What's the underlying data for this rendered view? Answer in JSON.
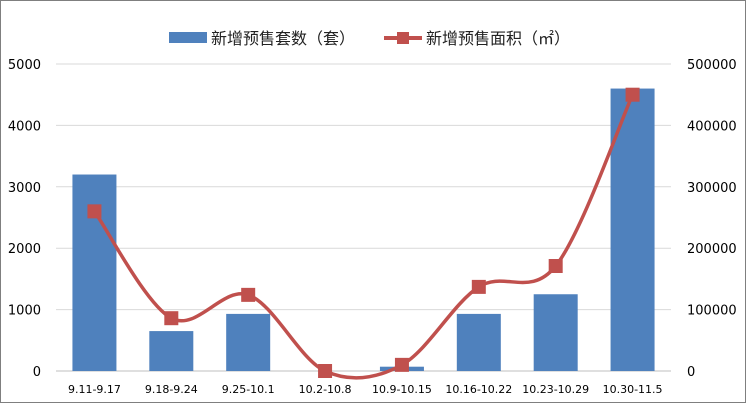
{
  "chart_data": {
    "type": "bar-line-combo",
    "categories": [
      "9.11-9.17",
      "9.18-9.24",
      "9.25-10.1",
      "10.2-10.8",
      "10.9-10.15",
      "10.16-10.22",
      "10.23-10.29",
      "10.30-11.5"
    ],
    "series": [
      {
        "name": "新增预售套数（套）",
        "type": "bar",
        "axis": "left",
        "color": "#4f81bd",
        "values": [
          3200,
          650,
          930,
          0,
          70,
          930,
          1250,
          4600
        ]
      },
      {
        "name": "新增预售面积（㎡）",
        "type": "line",
        "axis": "right",
        "color": "#c0504d",
        "values": [
          260000,
          86000,
          124000,
          0,
          10000,
          137000,
          171000,
          450000
        ]
      }
    ],
    "y_left": {
      "min": 0,
      "max": 5000,
      "ticks": [
        "0",
        "1000",
        "2000",
        "3000",
        "4000",
        "5000"
      ]
    },
    "y_right": {
      "min": 0,
      "max": 500000,
      "ticks": [
        "0",
        "100000",
        "200000",
        "300000",
        "400000",
        "500000"
      ]
    },
    "grid": true,
    "legend_position": "top"
  }
}
